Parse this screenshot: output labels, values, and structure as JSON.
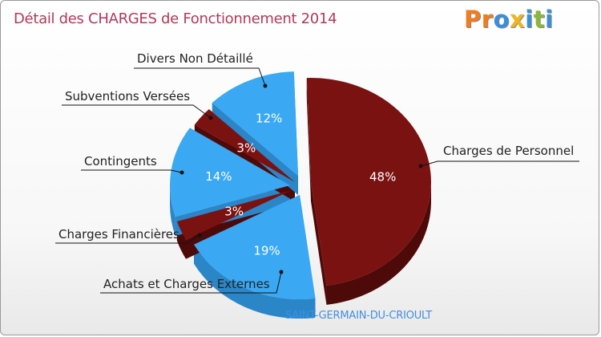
{
  "chart_title": "Détail des CHARGES de Fonctionnement 2014",
  "logo": {
    "letters": [
      "P",
      "r",
      "o",
      "x",
      "i",
      "t",
      "i"
    ],
    "colors": [
      "#f07c1f",
      "#f07c1f",
      "#3a8fd8",
      "#f0b51f",
      "#3a8fd8",
      "#8ab83a",
      "#3a8fd8"
    ]
  },
  "caption": "SAINT-GERMAIN-DU-CRIOULT",
  "colors": {
    "dark_red": "#7b1212",
    "blue": "#3aa8f2"
  },
  "chart_data": {
    "type": "pie",
    "title": "Détail des CHARGES de Fonctionnement 2014",
    "slices": [
      {
        "label": "Charges de Personnel",
        "value": 48,
        "display": "48%",
        "color": "dark_red"
      },
      {
        "label": "Achats et Charges Externes",
        "value": 19,
        "display": "19%",
        "color": "blue"
      },
      {
        "label": "Charges Financières",
        "value": 3,
        "display": "3%",
        "color": "dark_red"
      },
      {
        "label": "Contingents",
        "value": 14,
        "display": "14%",
        "color": "blue"
      },
      {
        "label": "Subventions Versées",
        "value": 3,
        "display": "3%",
        "color": "dark_red"
      },
      {
        "label": "Divers Non Détaillé",
        "value": 12,
        "display": "12%",
        "color": "blue"
      }
    ]
  }
}
